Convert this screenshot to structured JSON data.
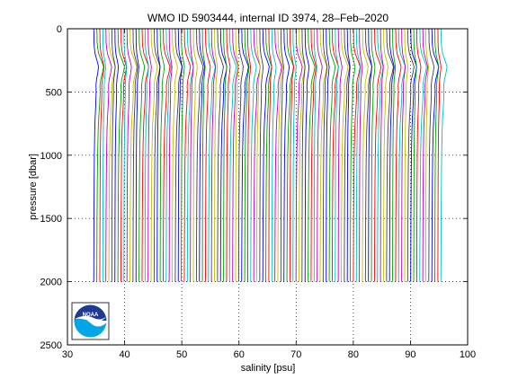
{
  "chart_data": {
    "type": "line",
    "title": "WMO ID 5903444, internal ID 3974, 28–Feb–2020",
    "xlabel": "salinity [psu]",
    "ylabel": "pressure [dbar]",
    "xlim": [
      30,
      100
    ],
    "ylim": [
      0,
      2500
    ],
    "y_reversed": true,
    "grid": true,
    "xticks": [
      "30",
      "40",
      "50",
      "60",
      "70",
      "80",
      "90",
      "100"
    ],
    "yticks": [
      "0",
      "500",
      "1000",
      "1500",
      "2000",
      "2500"
    ],
    "profile_pressure": [
      0,
      50,
      100,
      150,
      200,
      250,
      300,
      350,
      400,
      450,
      500,
      600,
      700,
      800,
      1000,
      1200,
      1500,
      2000
    ],
    "profile_shape": [
      0.0,
      0.05,
      0.05,
      0.15,
      0.35,
      0.8,
      1.2,
      1.0,
      0.7,
      0.55,
      0.6,
      0.5,
      0.35,
      0.25,
      0.15,
      0.1,
      0.05,
      0.0
    ],
    "profile_count": 116,
    "first_offset_psu": 34.6,
    "offset_step_psu": 0.528,
    "colors": [
      "#0000ff",
      "#00a000",
      "#ff0000",
      "#00bfbf",
      "#bf00bf",
      "#bfbf00",
      "#404040"
    ]
  },
  "logo": {
    "text": "NOAA"
  }
}
